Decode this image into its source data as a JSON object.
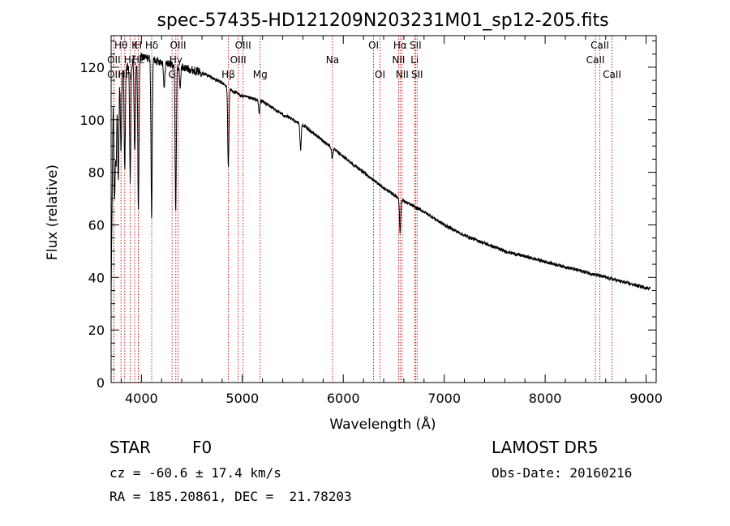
{
  "chart_data": {
    "type": "line",
    "title": "spec-57435-HD121209N203231M01_sp12-205.fits",
    "xlabel": "Wavelength (Å)",
    "ylabel": "Flux (relative)",
    "xlim": [
      3700,
      9100
    ],
    "ylim": [
      0,
      132
    ],
    "xticks": [
      4000,
      5000,
      6000,
      7000,
      8000,
      9000
    ],
    "yticks": [
      0,
      20,
      40,
      60,
      80,
      100,
      120
    ],
    "x_tick_labels": [
      "4000",
      "5000",
      "6000",
      "7000",
      "8000",
      "9000"
    ],
    "y_tick_labels": [
      "0",
      "20",
      "40",
      "60",
      "80",
      "100",
      "120"
    ],
    "grid": false,
    "line_color": "#000000",
    "marker_color": "#cc0000",
    "spectrum_continuum": [
      [
        3700,
        32
      ],
      [
        3720,
        108
      ],
      [
        3760,
        116
      ],
      [
        3800,
        118
      ],
      [
        3850,
        120
      ],
      [
        3900,
        121
      ],
      [
        4000,
        124
      ],
      [
        4100,
        123
      ],
      [
        4200,
        122
      ],
      [
        4300,
        121
      ],
      [
        4400,
        120
      ],
      [
        4500,
        119
      ],
      [
        4600,
        118
      ],
      [
        4700,
        116
      ],
      [
        4800,
        114
      ],
      [
        4900,
        111
      ],
      [
        5000,
        109
      ],
      [
        5200,
        107
      ],
      [
        5400,
        102
      ],
      [
        5600,
        98
      ],
      [
        5800,
        92
      ],
      [
        6000,
        86
      ],
      [
        6200,
        80
      ],
      [
        6400,
        74
      ],
      [
        6600,
        69
      ],
      [
        6800,
        65
      ],
      [
        7000,
        60
      ],
      [
        7200,
        56
      ],
      [
        7400,
        53
      ],
      [
        7600,
        50
      ],
      [
        7800,
        48
      ],
      [
        8000,
        46
      ],
      [
        8200,
        44
      ],
      [
        8400,
        42
      ],
      [
        8600,
        40
      ],
      [
        8800,
        38
      ],
      [
        9000,
        36
      ],
      [
        9040,
        36
      ]
    ],
    "absorption_features": [
      {
        "x": 3734,
        "depth": 40
      },
      {
        "x": 3750,
        "depth": 30
      },
      {
        "x": 3771,
        "depth": 40
      },
      {
        "x": 3798,
        "depth": 30
      },
      {
        "x": 3835,
        "depth": 38
      },
      {
        "x": 3889,
        "depth": 44
      },
      {
        "x": 3934,
        "depth": 35
      },
      {
        "x": 3970,
        "depth": 58
      },
      {
        "x": 4101,
        "depth": 60
      },
      {
        "x": 4226,
        "depth": 10
      },
      {
        "x": 4340,
        "depth": 55
      },
      {
        "x": 4383,
        "depth": 8
      },
      {
        "x": 4861,
        "depth": 30
      },
      {
        "x": 5167,
        "depth": 5
      },
      {
        "x": 5577,
        "depth": 10
      },
      {
        "x": 5890,
        "depth": 4
      },
      {
        "x": 6563,
        "depth": 13
      }
    ],
    "line_markers": [
      {
        "x": 3727,
        "label": "OII",
        "row": 2
      },
      {
        "x": 3727,
        "label": "OII",
        "row": 1
      },
      {
        "x": 3798,
        "label": "Hθ",
        "row": 0
      },
      {
        "x": 3835,
        "label": "Hη",
        "row": 2
      },
      {
        "x": 3889,
        "label": "Hζ",
        "row": 1
      },
      {
        "x": 3934,
        "label": "K",
        "row": 0
      },
      {
        "x": 3969,
        "label": "H",
        "row": 0
      },
      {
        "x": 3970,
        "label": "Hε",
        "row": 1
      },
      {
        "x": 4102,
        "label": "Hδ",
        "row": 0
      },
      {
        "x": 4304,
        "label": "G",
        "row": 2
      },
      {
        "x": 4341,
        "label": "Hγ",
        "row": 1
      },
      {
        "x": 4363,
        "label": "OIII",
        "row": 0
      },
      {
        "x": 4861,
        "label": "Hβ",
        "row": 2
      },
      {
        "x": 4959,
        "label": "OIII",
        "row": 1
      },
      {
        "x": 5007,
        "label": "OIII",
        "row": 0
      },
      {
        "x": 5177,
        "label": "Mg",
        "row": 2
      },
      {
        "x": 5893,
        "label": "Na",
        "row": 1
      },
      {
        "x": 6300,
        "label": "OI",
        "row": 0
      },
      {
        "x": 6364,
        "label": "OI",
        "row": 2
      },
      {
        "x": 6548,
        "label": "NII",
        "row": 1
      },
      {
        "x": 6563,
        "label": "Hα",
        "row": 0
      },
      {
        "x": 6583,
        "label": "NII",
        "row": 2
      },
      {
        "x": 6707,
        "label": "Li",
        "row": 1
      },
      {
        "x": 6716,
        "label": "SII",
        "row": 0
      },
      {
        "x": 6731,
        "label": "SII",
        "row": 2
      },
      {
        "x": 8498,
        "label": "CaII",
        "row": 1
      },
      {
        "x": 8542,
        "label": "CaII",
        "row": 0
      },
      {
        "x": 8662,
        "label": "CaII",
        "row": 2
      }
    ]
  },
  "info": {
    "class_label": "STAR",
    "subclass_label": "F0",
    "survey_label": "LAMOST DR5",
    "redshift_text": "cz = -60.6 ± 17.4 km/s",
    "obs_date_text": "Obs-Date: 20160216",
    "coords_text": "RA = 185.20861, DEC =  21.78203"
  }
}
